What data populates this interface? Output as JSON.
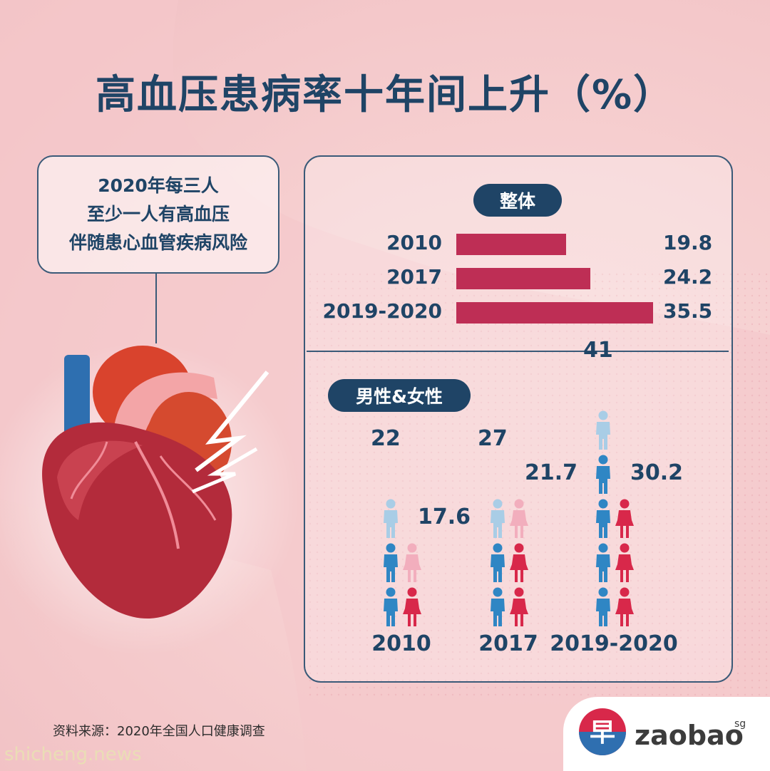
{
  "title": "高血压患病率十年间上升（%）",
  "callout": {
    "lines": [
      "2020年每三人",
      "至少一人有高血压",
      "伴随患心血管疾病风险"
    ]
  },
  "overall": {
    "label": "整体"
  },
  "gender": {
    "label": "男性&女性"
  },
  "source": "资料来源：2020年全国人口健康调查",
  "watermark": "shicheng.news",
  "logo": {
    "mark": "早",
    "text": "zaobao",
    "suffix": "sg"
  },
  "colors": {
    "bar": "#be2e55",
    "male": "#2f86c4",
    "female": "#d8284a",
    "male_light": "#a9cde6",
    "female_light": "#f2aebd",
    "navy": "#1f4466"
  },
  "chart_data": [
    {
      "type": "bar",
      "orientation": "horizontal",
      "title": "整体",
      "categories": [
        "2010",
        "2017",
        "2019-2020"
      ],
      "values": [
        19.8,
        24.2,
        35.5
      ],
      "value_labels": [
        "19.8",
        "24.2",
        "35.5"
      ]
    },
    {
      "type": "bar",
      "title": "男性&女性",
      "categories": [
        "2010",
        "2017",
        "2019-2020"
      ],
      "series": [
        {
          "values": [
            22,
            27,
            41
          ],
          "value_labels": [
            "22",
            "27",
            "41"
          ]
        },
        {
          "values": [
            17.6,
            21.7,
            30.2
          ],
          "value_labels": [
            "17.6",
            "21.7",
            "30.2"
          ]
        }
      ]
    }
  ]
}
